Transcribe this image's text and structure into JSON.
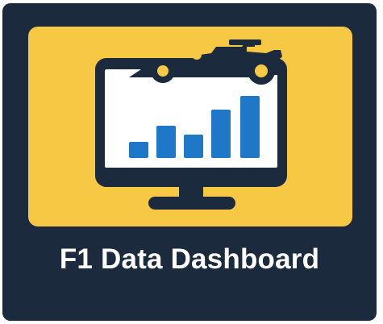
{
  "app_tile": {
    "title": "F1 Data Dashboard",
    "icon": "monitor-bar-chart-race-car-icon",
    "colors": {
      "background": "#1b2a3d",
      "panel": "#f6c844",
      "screen": "#ffffff",
      "bars": "#1f77c8",
      "outline": "#1b2a3d",
      "title_text": "#ffffff"
    }
  }
}
